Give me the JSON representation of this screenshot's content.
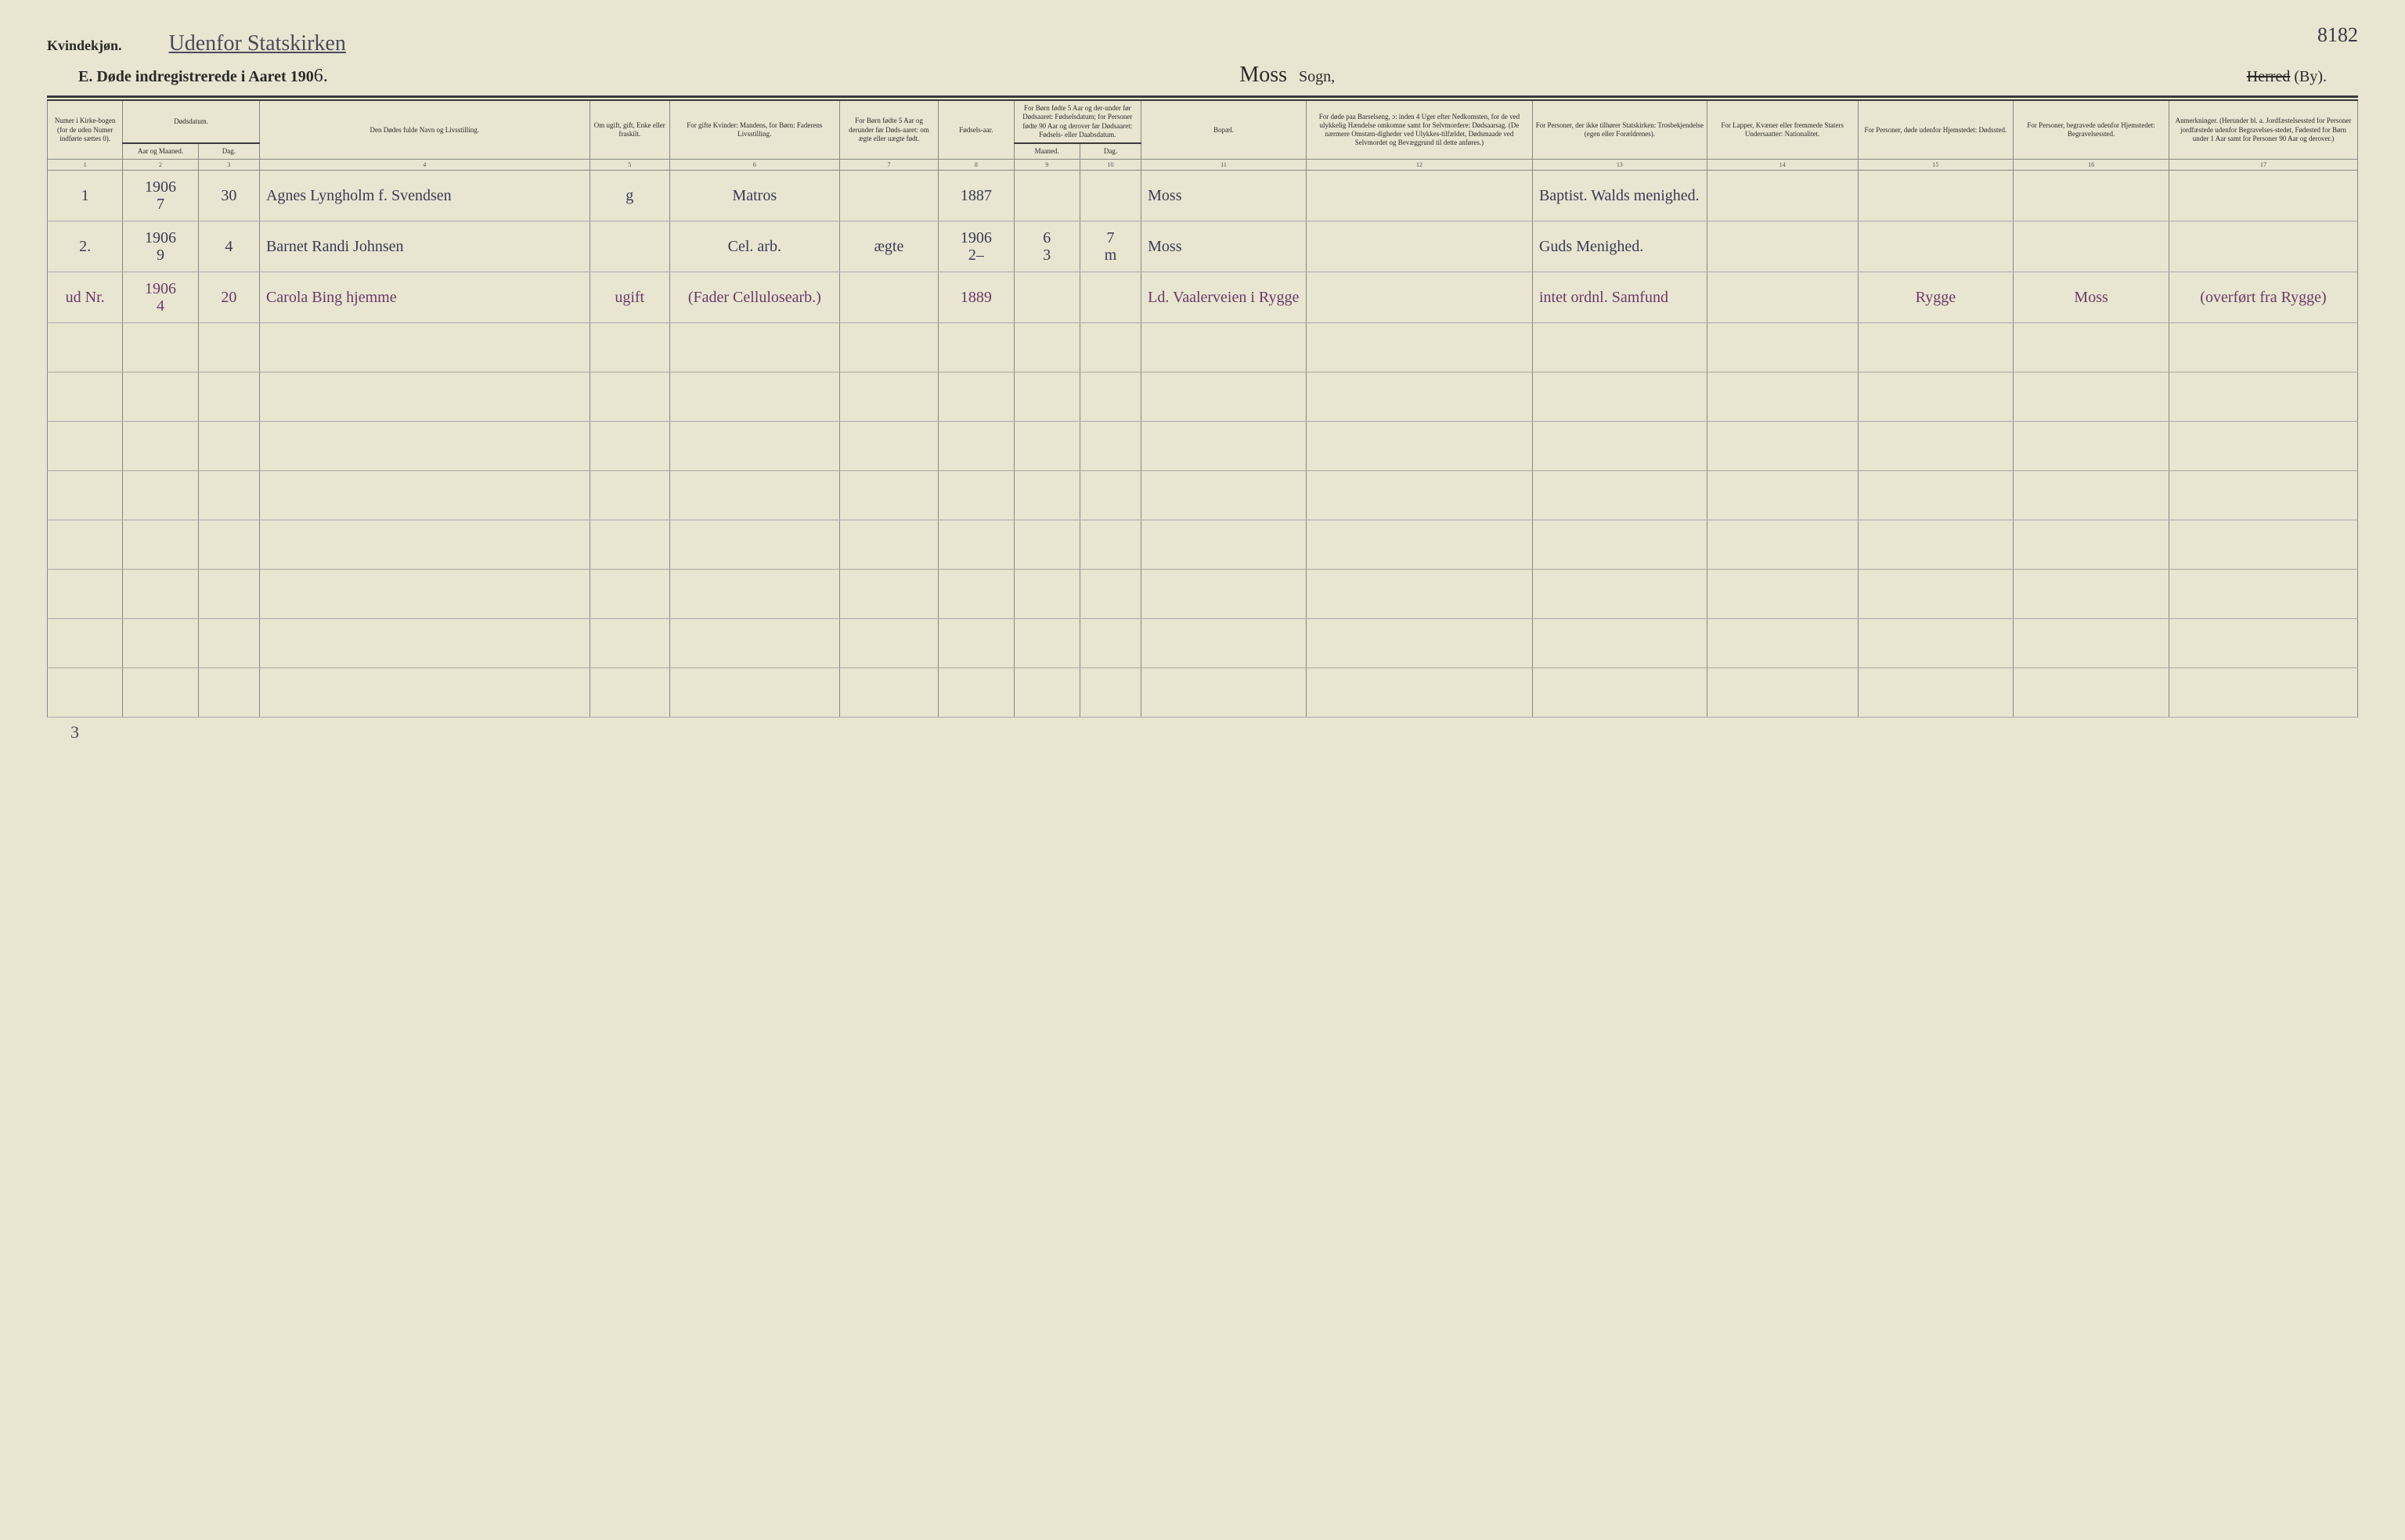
{
  "header": {
    "gender_label": "Kvindekjøn.",
    "handwritten_title": "Udenfor Statskirken",
    "page_number": "8182",
    "main_heading_prefix": "E.  Døde indregistrerede i Aaret 190",
    "year_suffix": "6.",
    "sogn_hand": "Moss",
    "sogn_label": "Sogn,",
    "herred_struck": "Herred",
    "by_label": "(By)."
  },
  "columns": {
    "c1": "Numer i Kirke-bogen (for de uden Numer indførte sættes 0).",
    "c2_top": "Dødsdatum.",
    "c2a": "Aar og Maaned.",
    "c2b": "Dag.",
    "c4": "Den Dødes fulde Navn og Livsstilling.",
    "c5": "Om ugift, gift, Enke eller fraskilt.",
    "c6": "For gifte Kvinder: Mandens, for Børn: Faderens Livsstilling.",
    "c7": "For Børn fødte 5 Aar og derunder før Døds-aaret: om ægte eller uægte født.",
    "c8": "Fødsels-aar.",
    "c9_top": "For Børn fødte 5 Aar og der-under før Dødsaaret: Fødselsdatum; for Personer fødte 90 Aar og derover før Dødsaaret: Fødsels- eller Daabsdatum.",
    "c9a": "Maaned.",
    "c9b": "Dag.",
    "c11": "Bopæl.",
    "c12": "For døde paa Barselseng, ɔ: inden 4 Uger efter Nedkomsten, for de ved ulykkelig Hændelse omkomne samt for Selvmordere: Dødsaarsag. (De nærmere Omstæn-digheder ved Ulykkes-tilfældet, Dødsmaade ved Selvmordet og Bevæggrund til dette anføres.)",
    "c13": "For Personer, der ikke tilhører Statskirken: Trosbekjendelse (egen eller Forældrenes).",
    "c14": "For Lapper, Kvæner eller fremmede Staters Undersaatter: Nationalitet.",
    "c15": "For Personer, døde udenfor Hjemstedet: Dødssted.",
    "c16": "For Personer, begravede udenfor Hjemstedet: Begravelsessted.",
    "c17": "Anmerkninger. (Herunder bl. a. Jordfæstelsessted for Personer jordfæstede udenfor Begravelses-stedet, Fødested for Børn under 1 Aar samt for Personer 90 Aar og derover.)"
  },
  "colnums": [
    "1",
    "2",
    "3",
    "4",
    "5",
    "6",
    "7",
    "8",
    "9",
    "10",
    "11",
    "12",
    "13",
    "14",
    "15",
    "16",
    "17"
  ],
  "rows": [
    {
      "num": "1",
      "year_month": "1906\n7",
      "day": "30",
      "name": "Agnes Lyngholm f. Svendsen",
      "status": "g",
      "occupation": "Matros",
      "legit": "",
      "birth_year": "1887",
      "bm": "",
      "bd": "",
      "residence": "Moss",
      "cause": "",
      "faith": "Baptist. Walds menighed.",
      "nat": "",
      "death_place": "",
      "burial_place": "",
      "remarks": ""
    },
    {
      "num": "2.",
      "year_month": "1906\n9",
      "day": "4",
      "name": "Barnet Randi Johnsen",
      "status": "",
      "occupation": "Cel. arb.",
      "legit": "ægte",
      "birth_year": "1906\n2–",
      "bm": "6\n3",
      "bd": "7\nm",
      "residence": "Moss",
      "cause": "",
      "faith": "Guds Menighed.",
      "nat": "",
      "death_place": "",
      "burial_place": "",
      "remarks": ""
    },
    {
      "num": "ud Nr.",
      "year_month": "1906\n4",
      "day": "20",
      "name": "Carola Bing hjemme",
      "status": "ugift",
      "occupation": "(Fader Cellulosearb.)",
      "legit": "",
      "birth_year": "1889",
      "bm": "",
      "bd": "",
      "residence": "Ld. Vaalerveien i Rygge",
      "cause": "",
      "faith": "intet ordnl. Samfund",
      "nat": "",
      "death_place": "Rygge",
      "burial_place": "Moss",
      "remarks": "(overført fra Rygge)"
    }
  ],
  "tally": "3",
  "widths": {
    "c1": "3.2%",
    "c2a": "3.2%",
    "c2b": "2.6%",
    "c4": "14%",
    "c5": "3.4%",
    "c6": "7.2%",
    "c7": "4.2%",
    "c8": "3.2%",
    "c9a": "2.8%",
    "c9b": "2.6%",
    "c11": "7%",
    "c12": "9.6%",
    "c13": "7.4%",
    "c14": "6.4%",
    "c15": "6.6%",
    "c16": "6.6%",
    "c17": "8%"
  },
  "colors": {
    "paper": "#e8e5d0",
    "ink_print": "#2a2a2a",
    "ink_hand": "#3a3a55",
    "ink_purple": "#6a3a6a",
    "rule": "#3a3a3a",
    "grid": "#888"
  }
}
